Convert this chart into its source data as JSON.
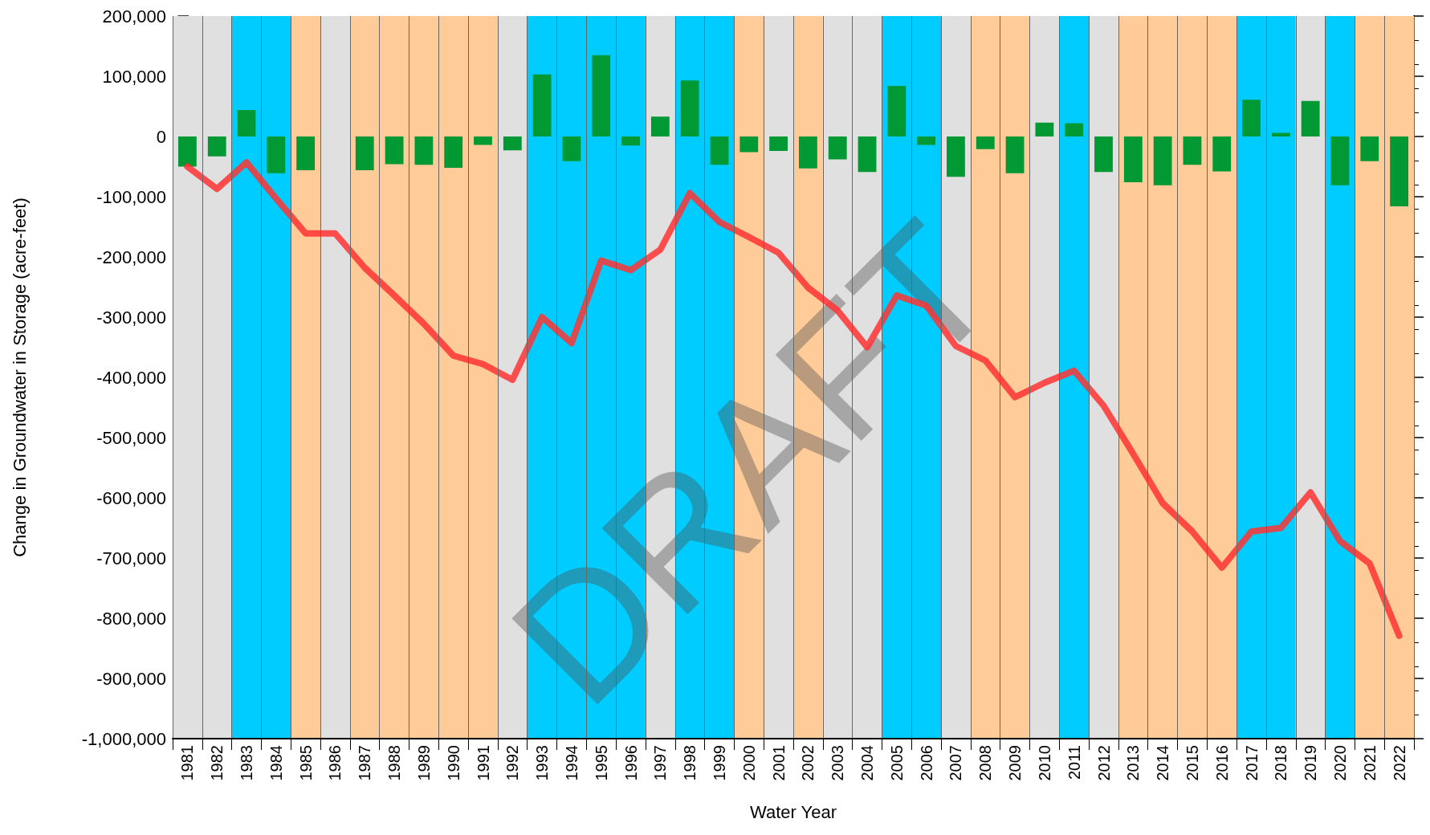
{
  "chart_data": {
    "type": "bar",
    "xlabel": "Water Year",
    "ylabel": "Change in Groundwater in Storage (acre-feet)",
    "categories": [
      "1981",
      "1982",
      "1983",
      "1984",
      "1985",
      "1986",
      "1987",
      "1988",
      "1989",
      "1990",
      "1991",
      "1992",
      "1993",
      "1994",
      "1995",
      "1996",
      "1997",
      "1998",
      "1999",
      "2000",
      "2001",
      "2002",
      "2003",
      "2004",
      "2005",
      "2006",
      "2007",
      "2008",
      "2009",
      "2010",
      "2011",
      "2012",
      "2013",
      "2014",
      "2015",
      "2016",
      "2017",
      "2018",
      "2019",
      "2020",
      "2021",
      "2022"
    ],
    "series": [
      {
        "color": "#009933",
        "values": [
          -50000,
          -33000,
          44000,
          -61000,
          -56000,
          0,
          -56000,
          -46000,
          -47000,
          -52000,
          -14000,
          -23000,
          103000,
          -41000,
          135000,
          -15000,
          33000,
          93000,
          -47000,
          -26000,
          -24000,
          -53000,
          -38000,
          -59000,
          84000,
          -14000,
          -67000,
          -21000,
          -61000,
          23000,
          22000,
          -59000,
          -76000,
          -81000,
          -47000,
          -58000,
          61000,
          6000,
          59000,
          -81000,
          -41000,
          -116000
        ]
      },
      {
        "type": "line",
        "color": "#ff3333",
        "values": [
          -50000,
          -87000,
          -43000,
          -103000,
          -161000,
          -161000,
          -218000,
          -264000,
          -311000,
          -364000,
          -378000,
          -404000,
          -300000,
          -343000,
          -206000,
          -222000,
          -188000,
          -94000,
          -142000,
          -167000,
          -193000,
          -251000,
          -289000,
          -350000,
          -264000,
          -281000,
          -348000,
          -372000,
          -433000,
          -409000,
          -389000,
          -447000,
          -527000,
          -609000,
          -656000,
          -716000,
          -656000,
          -650000,
          -591000,
          -672000,
          -709000,
          -829000
        ]
      }
    ],
    "ylim": [
      -1000000,
      200000
    ],
    "yticks": [
      {
        "value": -1000000,
        "label": "-1,000,000"
      },
      {
        "value": -900000,
        "label": "-900,000"
      },
      {
        "value": -800000,
        "label": "-800,000"
      },
      {
        "value": -700000,
        "label": "-700,000"
      },
      {
        "value": -600000,
        "label": "-600,000"
      },
      {
        "value": -500000,
        "label": "-500,000"
      },
      {
        "value": -400000,
        "label": "-400,000"
      },
      {
        "value": -300000,
        "label": "-300,000"
      },
      {
        "value": -200000,
        "label": "-200,000"
      },
      {
        "value": -100000,
        "label": "-100,000"
      },
      0,
      {
        "value": 100000,
        "label": "100,000"
      },
      {
        "value": 200000,
        "label": "200,000"
      }
    ],
    "bands": [
      {
        "axis": "x",
        "from": "1981",
        "to": "1982",
        "color": "#e0e0e0"
      },
      {
        "axis": "x",
        "from": "1983",
        "to": "1984",
        "color": "#00ccff"
      },
      {
        "axis": "x",
        "from": "1985",
        "to": "1985",
        "color": "#ffcc99"
      },
      {
        "axis": "x",
        "from": "1986",
        "to": "1986",
        "color": "#e0e0e0"
      },
      {
        "axis": "x",
        "from": "1987",
        "to": "1991",
        "color": "#ffcc99"
      },
      {
        "axis": "x",
        "from": "1992",
        "to": "1992",
        "color": "#e0e0e0"
      },
      {
        "axis": "x",
        "from": "1993",
        "to": "1996",
        "color": "#00ccff"
      },
      {
        "axis": "x",
        "from": "1997",
        "to": "1997",
        "color": "#e0e0e0"
      },
      {
        "axis": "x",
        "from": "1998",
        "to": "1999",
        "color": "#00ccff"
      },
      {
        "axis": "x",
        "from": "2000",
        "to": "2000",
        "color": "#ffcc99"
      },
      {
        "axis": "x",
        "from": "2001",
        "to": "2001",
        "color": "#e0e0e0"
      },
      {
        "axis": "x",
        "from": "2002",
        "to": "2002",
        "color": "#ffcc99"
      },
      {
        "axis": "x",
        "from": "2003",
        "to": "2004",
        "color": "#e0e0e0"
      },
      {
        "axis": "x",
        "from": "2005",
        "to": "2006",
        "color": "#00ccff"
      },
      {
        "axis": "x",
        "from": "2007",
        "to": "2007",
        "color": "#e0e0e0"
      },
      {
        "axis": "x",
        "from": "2008",
        "to": "2009",
        "color": "#ffcc99"
      },
      {
        "axis": "x",
        "from": "2010",
        "to": "2010",
        "color": "#e0e0e0"
      },
      {
        "axis": "x",
        "from": "2011",
        "to": "2011",
        "color": "#00ccff"
      },
      {
        "axis": "x",
        "from": "2012",
        "to": "2012",
        "color": "#e0e0e0"
      },
      {
        "axis": "x",
        "from": "2013",
        "to": "2016",
        "color": "#ffcc99"
      },
      {
        "axis": "x",
        "from": "2017",
        "to": "2018",
        "color": "#00ccff"
      },
      {
        "axis": "x",
        "from": "2019",
        "to": "2019",
        "color": "#e0e0e0"
      },
      {
        "axis": "x",
        "from": "2020",
        "to": "2020",
        "color": "#00ccff"
      },
      {
        "axis": "x",
        "from": "2021",
        "to": "2022",
        "color": "#ffcc99"
      }
    ],
    "annotations": [
      "DRAFT"
    ],
    "grid": "x",
    "marker": "none"
  }
}
